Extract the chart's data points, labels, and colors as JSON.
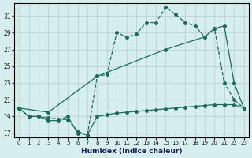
{
  "xlabel": "Humidex (Indice chaleur)",
  "bg_color": "#d6eeee",
  "grid_color": "#c0d8d8",
  "line_color": "#1a6b5a",
  "ylim": [
    16.5,
    32.5
  ],
  "xlim": [
    -0.5,
    23.5
  ],
  "yticks": [
    17,
    19,
    21,
    23,
    25,
    27,
    29,
    31
  ],
  "xticks": [
    0,
    1,
    2,
    3,
    4,
    5,
    6,
    7,
    8,
    9,
    10,
    11,
    12,
    13,
    14,
    15,
    16,
    17,
    18,
    19,
    20,
    21,
    22,
    23
  ],
  "series1_x": [
    0,
    1,
    2,
    3,
    4,
    5,
    6,
    7,
    8,
    9,
    10,
    11,
    12,
    13,
    14,
    15,
    16,
    17,
    18,
    19,
    20,
    21,
    22,
    23
  ],
  "series1_y": [
    20.0,
    19.0,
    19.0,
    18.5,
    18.5,
    19.0,
    17.0,
    16.8,
    19.0,
    19.2,
    19.4,
    19.5,
    19.6,
    19.7,
    19.8,
    19.9,
    20.0,
    20.1,
    20.2,
    20.3,
    20.4,
    20.4,
    20.4,
    20.0
  ],
  "series2_x": [
    0,
    1,
    2,
    3,
    4,
    5,
    6,
    7,
    8,
    9,
    10,
    11,
    12,
    13,
    14,
    15,
    16,
    17,
    18,
    19,
    20,
    21,
    22,
    23
  ],
  "series2_y": [
    20.0,
    19.0,
    19.0,
    18.8,
    18.7,
    18.6,
    17.2,
    16.8,
    23.8,
    24.0,
    29.0,
    28.5,
    28.8,
    30.2,
    30.2,
    32.0,
    31.2,
    30.2,
    29.8,
    28.5,
    29.5,
    23.0,
    21.0,
    20.0
  ],
  "series3_x": [
    0,
    3,
    8,
    15,
    19,
    20,
    21,
    22,
    23
  ],
  "series3_y": [
    20.0,
    19.5,
    23.8,
    27.0,
    28.5,
    29.5,
    29.8,
    23.0,
    20.0
  ]
}
